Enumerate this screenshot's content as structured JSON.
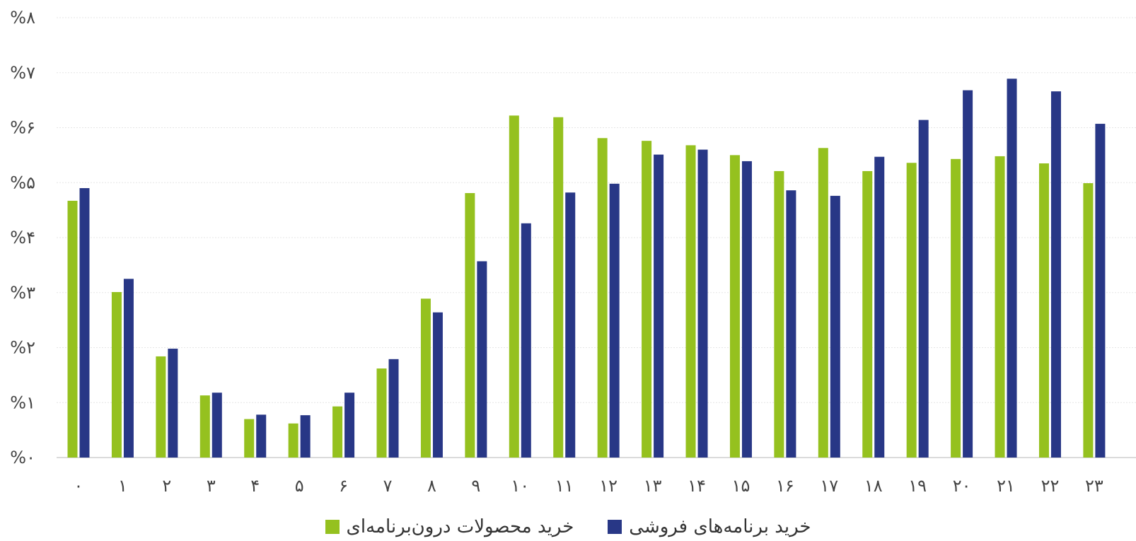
{
  "chart_data": {
    "type": "bar",
    "title": "",
    "xlabel": "",
    "ylabel": "",
    "categories": [
      "۰",
      "۱",
      "۲",
      "۳",
      "۴",
      "۵",
      "۶",
      "۷",
      "۸",
      "۹",
      "۱۰",
      "۱۱",
      "۱۲",
      "۱۳",
      "۱۴",
      "۱۵",
      "۱۶",
      "۱۷",
      "۱۸",
      "۱۹",
      "۲۰",
      "۲۱",
      "۲۲",
      "۲۳"
    ],
    "y_ticks": [
      "%۰",
      "%۱",
      "%۲",
      "%۳",
      "%۴",
      "%۵",
      "%۶",
      "%۷",
      "%۸"
    ],
    "ylim": [
      0,
      8
    ],
    "grid": true,
    "legend_position": "bottom-center",
    "series": [
      {
        "name": "خرید محصولات درون‌برنامه‌ای",
        "color": "#95c11f",
        "values": [
          4.67,
          3.01,
          1.84,
          1.13,
          0.7,
          0.62,
          0.93,
          1.62,
          2.89,
          4.81,
          6.22,
          6.19,
          5.81,
          5.76,
          5.68,
          5.5,
          5.21,
          5.63,
          5.21,
          5.36,
          5.43,
          5.48,
          5.35,
          4.99
        ]
      },
      {
        "name": "خرید برنامه‌های فروشی",
        "color": "#283786",
        "values": [
          4.9,
          3.25,
          1.98,
          1.18,
          0.78,
          0.77,
          1.18,
          1.79,
          2.64,
          3.57,
          4.26,
          4.82,
          4.98,
          5.51,
          5.6,
          5.39,
          4.86,
          4.76,
          5.47,
          6.14,
          6.68,
          6.89,
          6.66,
          6.07
        ]
      }
    ]
  }
}
